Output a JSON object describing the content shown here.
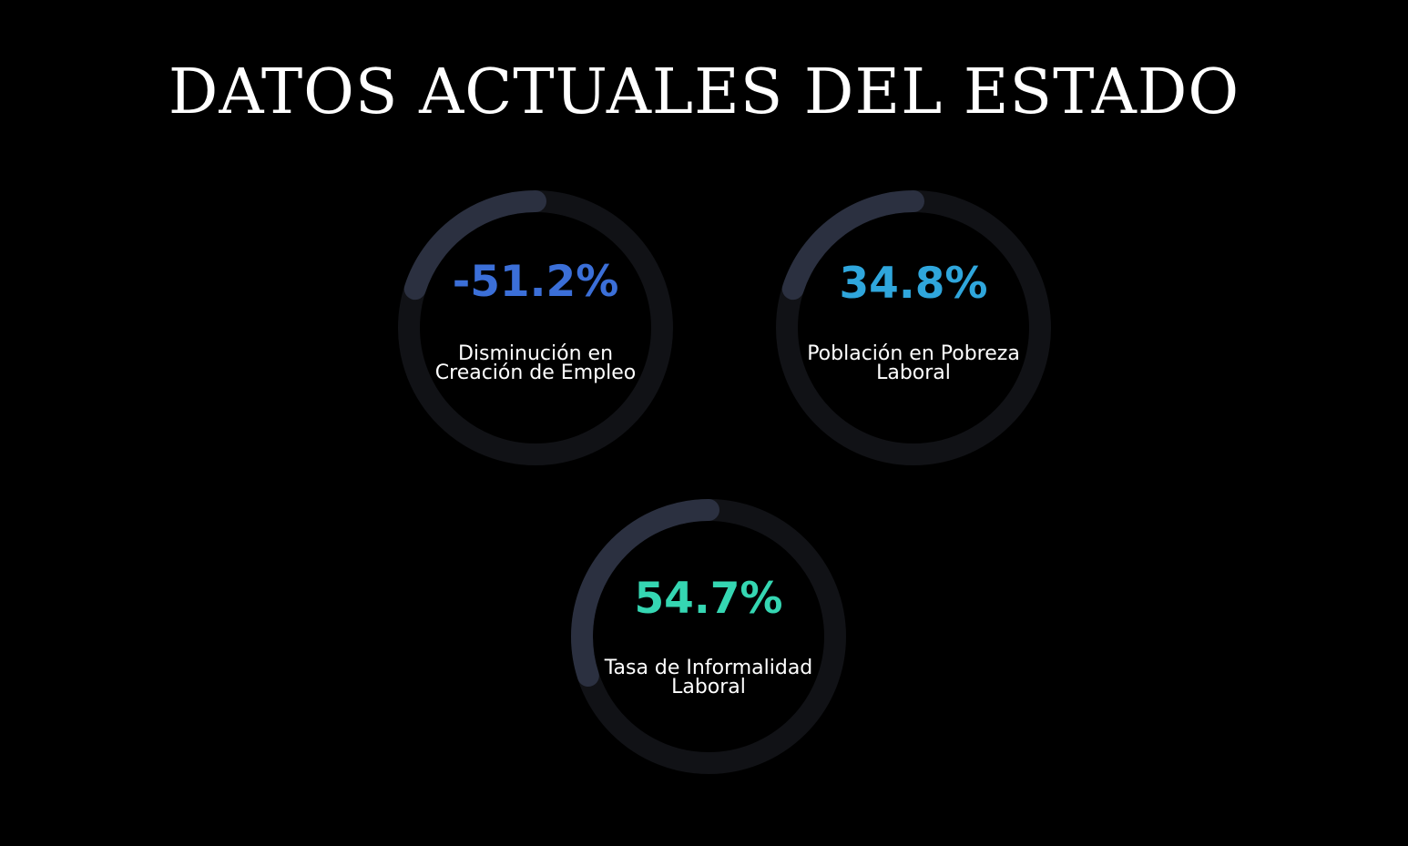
{
  "page": {
    "title": "DATOS ACTUALES DEL ESTADO",
    "background": "#000000"
  },
  "ring": {
    "track_color": "#111216",
    "progress_color": "#2b3040"
  },
  "stats": [
    {
      "value": "-51.2%",
      "label": "Disminución en Creación de Empleo",
      "value_color": "#3b6fd8",
      "progress": 0.2
    },
    {
      "value": "34.8%",
      "label": "Población en Pobreza Laboral",
      "value_color": "#2fa6dc",
      "progress": 0.2
    },
    {
      "value": "54.7%",
      "label": "Tasa de Informalidad Laboral",
      "value_color": "#35d6b2",
      "progress": 0.3
    }
  ]
}
